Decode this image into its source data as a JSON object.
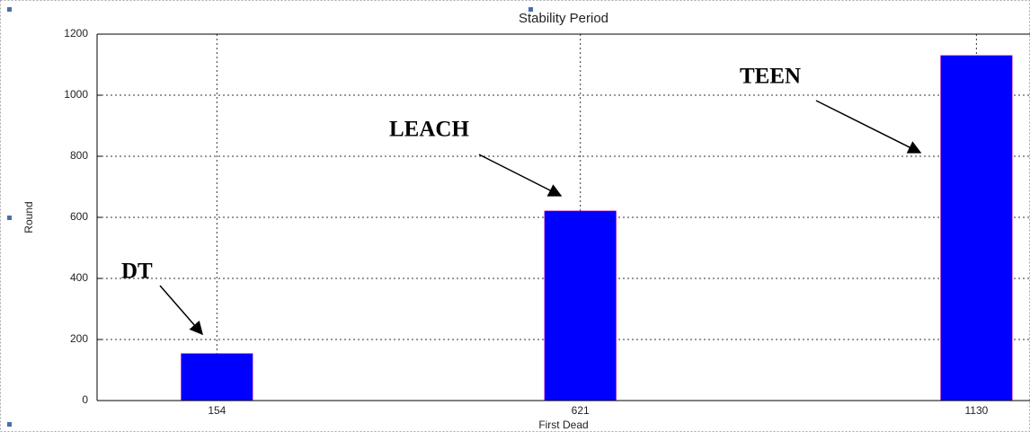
{
  "chart_data": {
    "type": "bar",
    "title": "Stability Period",
    "xlabel": "First Dead",
    "ylabel": "Round",
    "x": [
      154,
      621,
      1130
    ],
    "values": [
      154,
      621,
      1130
    ],
    "color": "#0000ff",
    "xlim": [
      0,
      1200
    ],
    "xticks": [
      154,
      621,
      1130
    ],
    "ylim": [
      0,
      1200
    ],
    "yticks": [
      0,
      200,
      400,
      600,
      800,
      1000,
      1200
    ],
    "grid": true,
    "annotations": [
      {
        "text": "DT"
      },
      {
        "text": "LEACH"
      },
      {
        "text": "TEEN"
      }
    ]
  }
}
